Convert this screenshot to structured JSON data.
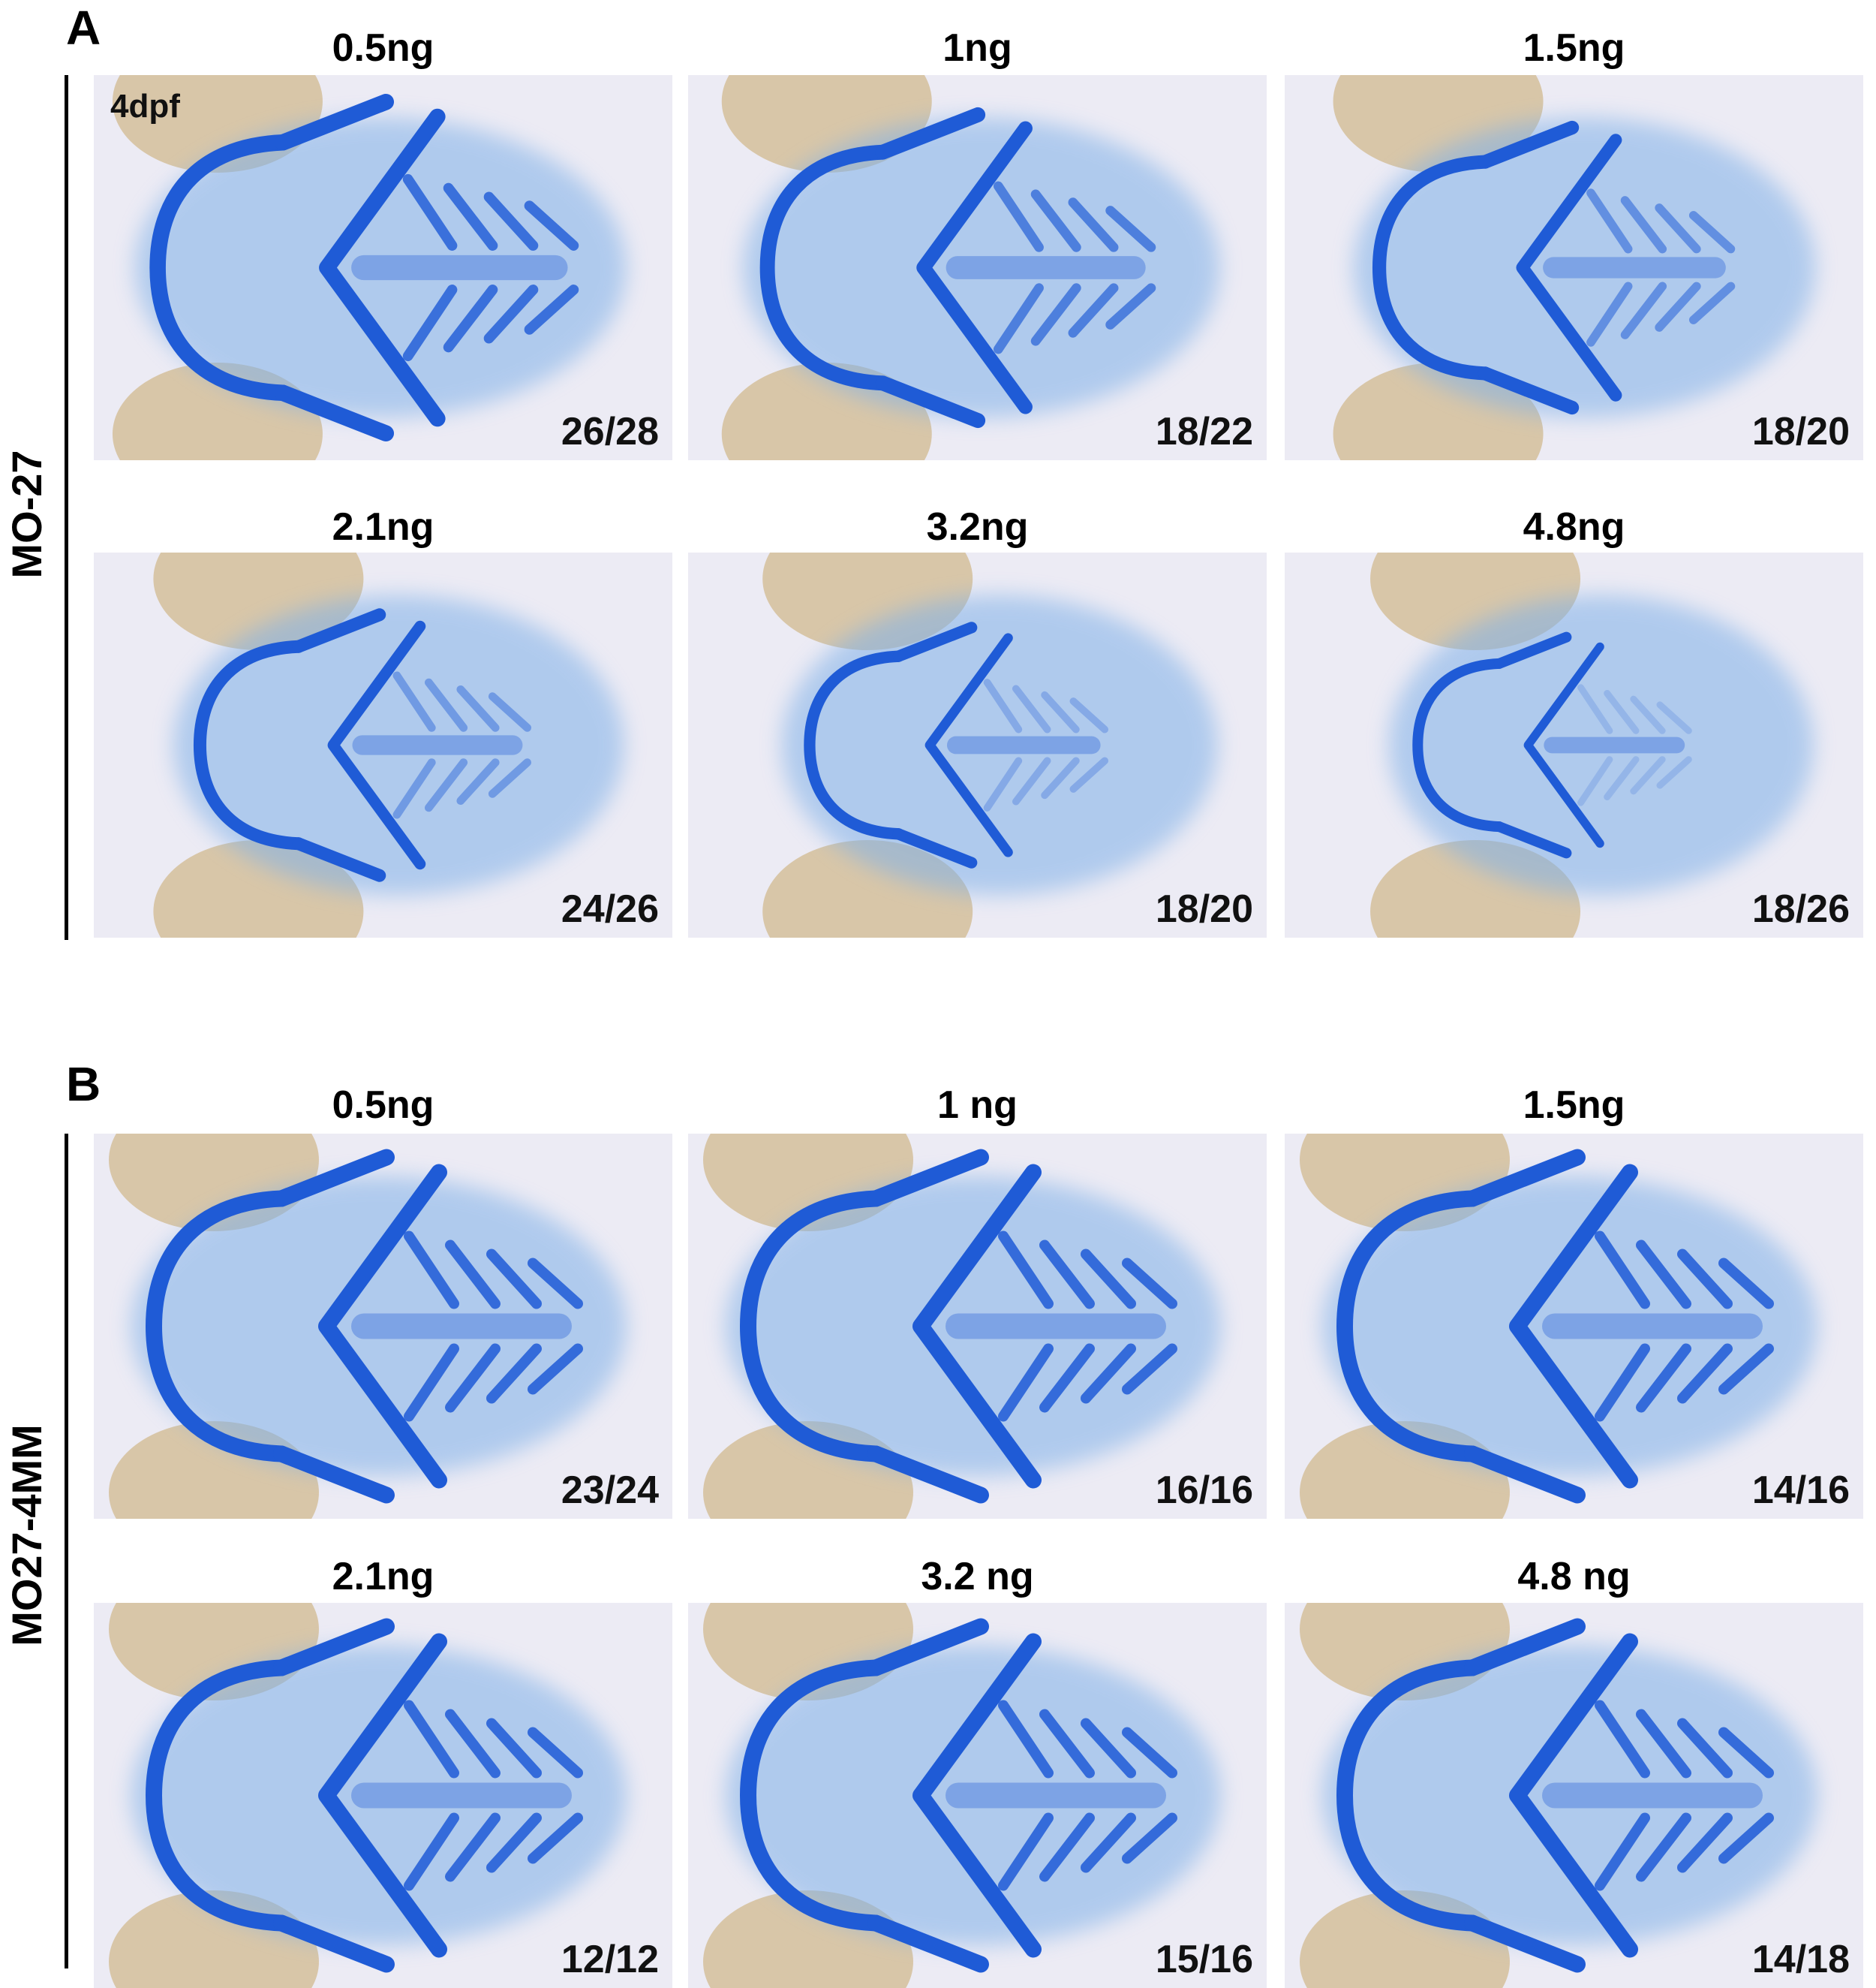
{
  "panels": [
    {
      "letter": "A",
      "group": "MO-27",
      "stage": "4dpf",
      "rows": [
        [
          {
            "dose": "0.5ng",
            "count": "26/28",
            "severity": 0.05
          },
          {
            "dose": "1ng",
            "count": "18/22",
            "severity": 0.25
          },
          {
            "dose": "1.5ng",
            "count": "18/20",
            "severity": 0.45
          }
        ],
        [
          {
            "dose": "2.1ng",
            "count": "24/26",
            "severity": 0.6
          },
          {
            "dose": "3.2ng",
            "count": "18/20",
            "severity": 0.8
          },
          {
            "dose": "4.8ng",
            "count": "18/26",
            "severity": 0.95
          }
        ]
      ]
    },
    {
      "letter": "B",
      "group": "MO27-4MM",
      "stage": "",
      "rows": [
        [
          {
            "dose": "0.5ng",
            "count": "23/24",
            "severity": 0.0
          },
          {
            "dose": "1 ng",
            "count": "16/16",
            "severity": 0.0
          },
          {
            "dose": "1.5ng",
            "count": "14/16",
            "severity": 0.0
          }
        ],
        [
          {
            "dose": "2.1ng",
            "count": "12/12",
            "severity": 0.0
          },
          {
            "dose": "3.2 ng",
            "count": "15/16",
            "severity": 0.0
          },
          {
            "dose": "4.8 ng",
            "count": "14/18",
            "severity": 0.0
          }
        ]
      ]
    }
  ],
  "colors": {
    "cartilage": "#1f5bd6",
    "eye": "#d8c6a8",
    "background": "#ecebf4",
    "tissue": "#7fb0e8"
  }
}
